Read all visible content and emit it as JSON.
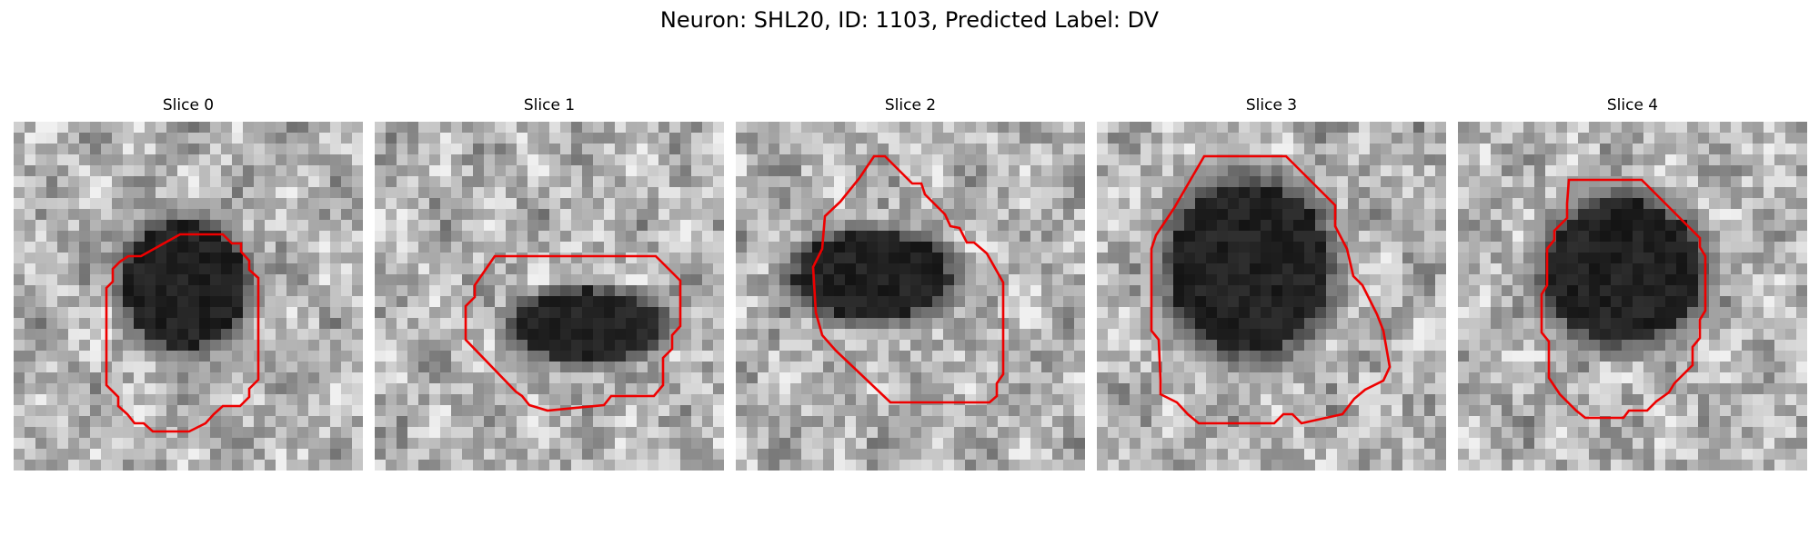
{
  "title": "Neuron: SHL20, ID: 1103, Predicted Label: DV",
  "slices": [
    {
      "label": "Slice 0"
    },
    {
      "label": "Slice 1"
    },
    {
      "label": "Slice 2"
    },
    {
      "label": "Slice 3"
    },
    {
      "label": "Slice 4"
    }
  ],
  "colors": {
    "contour": "#ee0000",
    "background": "#ffffff"
  }
}
